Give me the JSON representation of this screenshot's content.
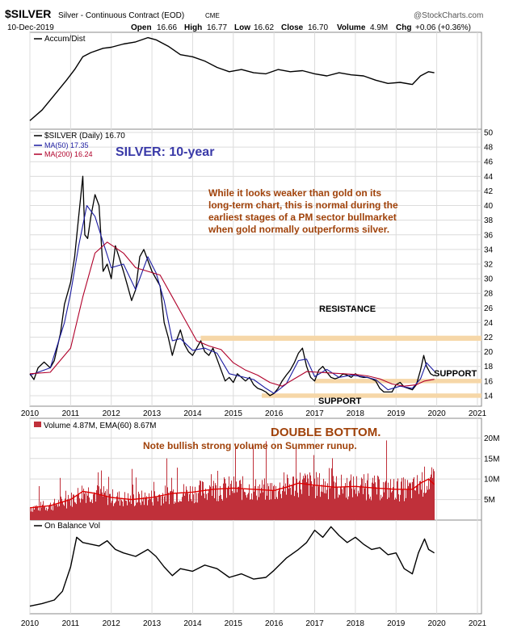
{
  "header": {
    "symbol": "$SILVER",
    "name": "Silver - Continuous Contract (EOD)",
    "exchange": "CME",
    "date": "10-Dec-2019",
    "watermark": "@StockCharts.com",
    "quote": {
      "open_label": "Open",
      "open": "16.66",
      "high_label": "High",
      "high": "16.77",
      "low_label": "Low",
      "low": "16.62",
      "close_label": "Close",
      "close": "16.70",
      "volume_label": "Volume",
      "volume": "4.9M",
      "chg_label": "Chg",
      "chg": "+0.06 (+0.36%)"
    }
  },
  "panels": {
    "accum": {
      "label": "Accum/Dist"
    },
    "price": {
      "label": "$SILVER (Daily) 16.70",
      "ma50": "MA(50) 17.35",
      "ma200": "MA(200) 16.24",
      "title": "SILVER: 10-year",
      "comment": [
        "While it looks weaker than gold on its",
        "long-term chart, this is normal during the",
        "earliest stages of a PM sector bullmarket",
        "when gold normally outperforms silver."
      ],
      "resistance_label": "RESISTANCE",
      "support_right_label": "SUPPORT",
      "support_bottom_label": "SUPPORT"
    },
    "volume": {
      "label": "Volume 4.87M, EMA(60) 8.67M",
      "title": "DOUBLE BOTTOM.",
      "note": "Note bullish strong volume on Summer runup."
    },
    "obv": {
      "label": "On Balance Vol"
    }
  },
  "colors": {
    "price": "#000000",
    "ma50": "#1a1aa0",
    "ma200": "#b0002a",
    "volume": "#c0303a",
    "volume_ema": "#e00000",
    "band": "#f6d7a8",
    "title_blue": "#3a3aa8",
    "comment_brown": "#a0420a",
    "grid": "#dcdcdc"
  },
  "chart_data": [
    {
      "type": "line",
      "name": "Accum/Dist",
      "x": [
        2010.0,
        2010.3,
        2010.6,
        2010.9,
        2011.1,
        2011.3,
        2011.5,
        2011.8,
        2012.0,
        2012.3,
        2012.6,
        2012.9,
        2013.1,
        2013.4,
        2013.7,
        2014.0,
        2014.3,
        2014.6,
        2014.9,
        2015.2,
        2015.5,
        2015.8,
        2016.1,
        2016.4,
        2016.7,
        2017.0,
        2017.3,
        2017.6,
        2017.9,
        2018.2,
        2018.5,
        2018.8,
        2019.1,
        2019.4,
        2019.6,
        2019.8,
        2019.94
      ],
      "values": [
        2,
        12,
        26,
        40,
        50,
        62,
        66,
        70,
        71,
        74,
        76,
        80,
        78,
        72,
        64,
        62,
        58,
        52,
        48,
        50,
        47,
        46,
        50,
        48,
        49,
        46,
        44,
        47,
        45,
        44,
        40,
        37,
        38,
        36,
        44,
        48,
        47
      ]
    },
    {
      "type": "line",
      "title": "SILVER: 10-year",
      "ylim": [
        13,
        50
      ],
      "y_ticks": [
        14,
        16,
        18,
        20,
        22,
        24,
        26,
        28,
        30,
        32,
        34,
        36,
        38,
        40,
        42,
        44,
        46,
        48,
        50
      ],
      "x_ticks": [
        "2010",
        "2011",
        "2012",
        "2013",
        "2014",
        "2015",
        "2016",
        "2017",
        "2018",
        "2019",
        "2020",
        "2021"
      ],
      "resistance": [
        21.5,
        22.2
      ],
      "support_upper": [
        15.7,
        16.3
      ],
      "support_lower": [
        13.7,
        14.3
      ],
      "series": [
        {
          "name": "$SILVER",
          "x": [
            2010.0,
            2010.1,
            2010.2,
            2010.35,
            2010.5,
            2010.6,
            2010.75,
            2010.85,
            2011.0,
            2011.1,
            2011.2,
            2011.3,
            2011.35,
            2011.42,
            2011.5,
            2011.6,
            2011.7,
            2011.8,
            2011.9,
            2012.0,
            2012.1,
            2012.2,
            2012.3,
            2012.4,
            2012.5,
            2012.6,
            2012.7,
            2012.8,
            2012.9,
            2013.0,
            2013.1,
            2013.2,
            2013.3,
            2013.4,
            2013.5,
            2013.6,
            2013.7,
            2013.8,
            2013.9,
            2014.0,
            2014.1,
            2014.2,
            2014.3,
            2014.4,
            2014.5,
            2014.6,
            2014.7,
            2014.8,
            2014.9,
            2015.0,
            2015.1,
            2015.2,
            2015.3,
            2015.4,
            2015.5,
            2015.6,
            2015.7,
            2015.8,
            2015.9,
            2016.0,
            2016.1,
            2016.2,
            2016.3,
            2016.4,
            2016.5,
            2016.6,
            2016.7,
            2016.8,
            2016.9,
            2017.0,
            2017.1,
            2017.2,
            2017.3,
            2017.4,
            2017.5,
            2017.6,
            2017.7,
            2017.8,
            2017.9,
            2018.0,
            2018.1,
            2018.2,
            2018.3,
            2018.4,
            2018.5,
            2018.6,
            2018.7,
            2018.8,
            2018.9,
            2019.0,
            2019.1,
            2019.2,
            2019.3,
            2019.4,
            2019.5,
            2019.6,
            2019.68,
            2019.75,
            2019.85,
            2019.94
          ],
          "values": [
            17.0,
            16.2,
            17.8,
            18.6,
            17.8,
            18.8,
            22.5,
            26.5,
            29.5,
            33.0,
            38.5,
            44.0,
            36.0,
            35.5,
            38.5,
            41.5,
            40.0,
            31.0,
            32.0,
            30.0,
            34.5,
            32.8,
            31.0,
            29.0,
            27.0,
            28.5,
            33.0,
            34.0,
            32.5,
            31.0,
            30.0,
            29.0,
            24.0,
            22.0,
            19.5,
            21.5,
            23.0,
            21.0,
            20.0,
            19.5,
            20.5,
            21.5,
            20.0,
            19.5,
            20.5,
            19.0,
            17.5,
            16.0,
            16.5,
            15.8,
            17.0,
            16.5,
            16.0,
            16.5,
            15.5,
            15.0,
            14.8,
            14.5,
            14.0,
            14.3,
            15.0,
            16.0,
            16.8,
            17.5,
            18.5,
            19.8,
            20.5,
            18.0,
            16.5,
            16.0,
            17.5,
            18.0,
            17.2,
            16.5,
            16.3,
            16.5,
            17.0,
            16.8,
            16.5,
            17.0,
            16.6,
            16.5,
            16.5,
            16.3,
            16.0,
            15.0,
            14.5,
            14.5,
            14.5,
            15.5,
            15.8,
            15.2,
            15.0,
            14.8,
            15.5,
            17.5,
            19.5,
            18.0,
            17.0,
            16.7
          ]
        },
        {
          "name": "MA(50)",
          "x": [
            2010.0,
            2010.5,
            2010.85,
            2011.0,
            2011.2,
            2011.4,
            2011.6,
            2011.8,
            2012.0,
            2012.3,
            2012.6,
            2012.9,
            2013.1,
            2013.3,
            2013.5,
            2013.7,
            2014.0,
            2014.3,
            2014.6,
            2014.9,
            2015.2,
            2015.5,
            2015.8,
            2016.0,
            2016.3,
            2016.6,
            2016.8,
            2017.0,
            2017.3,
            2017.6,
            2017.9,
            2018.2,
            2018.5,
            2018.8,
            2019.1,
            2019.4,
            2019.6,
            2019.75,
            2019.94
          ],
          "values": [
            16.8,
            17.8,
            24.0,
            28.0,
            34.5,
            40.0,
            38.5,
            35.0,
            31.5,
            32.0,
            28.5,
            33.0,
            30.8,
            27.0,
            21.5,
            21.8,
            20.2,
            20.5,
            19.8,
            17.0,
            16.6,
            16.2,
            15.0,
            14.3,
            15.6,
            18.8,
            19.0,
            16.6,
            17.6,
            16.5,
            16.8,
            16.6,
            16.2,
            14.8,
            15.3,
            15.0,
            16.3,
            18.5,
            17.35
          ]
        },
        {
          "name": "MA(200)",
          "x": [
            2010.0,
            2010.5,
            2011.0,
            2011.3,
            2011.6,
            2011.9,
            2012.3,
            2012.6,
            2012.9,
            2013.2,
            2013.5,
            2013.8,
            2014.1,
            2014.4,
            2014.7,
            2015.0,
            2015.3,
            2015.6,
            2015.9,
            2016.2,
            2016.5,
            2016.8,
            2017.1,
            2017.4,
            2017.7,
            2018.0,
            2018.3,
            2018.6,
            2018.9,
            2019.2,
            2019.5,
            2019.7,
            2019.94
          ],
          "values": [
            17.0,
            17.2,
            20.5,
            27.5,
            33.5,
            35.0,
            33.5,
            31.5,
            31.0,
            30.5,
            27.5,
            24.5,
            21.5,
            20.8,
            20.3,
            18.5,
            17.5,
            16.8,
            15.8,
            15.3,
            16.3,
            17.3,
            17.2,
            17.1,
            17.0,
            16.9,
            16.7,
            16.3,
            15.6,
            15.3,
            15.5,
            16.0,
            16.24
          ]
        }
      ]
    },
    {
      "type": "bar",
      "name": "Volume",
      "ylim": [
        0,
        24
      ],
      "unit": "M",
      "y_ticks": [
        "5M",
        "10M",
        "15M",
        "20M"
      ],
      "ema_name": "EMA(60)",
      "ema_x": [
        2010.0,
        2010.5,
        2011.0,
        2011.3,
        2011.6,
        2012.0,
        2012.5,
        2013.0,
        2013.5,
        2014.0,
        2014.5,
        2015.0,
        2015.5,
        2016.0,
        2016.3,
        2016.6,
        2017.0,
        2017.5,
        2018.0,
        2018.5,
        2019.0,
        2019.4,
        2019.6,
        2019.8,
        2019.94
      ],
      "ema_values": [
        3.0,
        3.5,
        5.0,
        7.0,
        6.5,
        5.5,
        5.0,
        5.5,
        6.5,
        6.8,
        7.5,
        7.8,
        7.5,
        7.2,
        8.0,
        9.0,
        8.5,
        8.0,
        8.2,
        7.8,
        7.5,
        7.5,
        9.0,
        10.0,
        8.67
      ],
      "x_range": [
        2010.0,
        2019.94
      ]
    },
    {
      "type": "line",
      "name": "On Balance Vol",
      "x": [
        2010.0,
        2010.3,
        2010.6,
        2010.8,
        2011.0,
        2011.15,
        2011.3,
        2011.5,
        2011.7,
        2011.9,
        2012.1,
        2012.3,
        2012.6,
        2012.9,
        2013.1,
        2013.3,
        2013.5,
        2013.7,
        2014.0,
        2014.3,
        2014.6,
        2014.9,
        2015.2,
        2015.5,
        2015.8,
        2016.0,
        2016.3,
        2016.6,
        2016.8,
        2017.0,
        2017.2,
        2017.4,
        2017.6,
        2017.8,
        2018.0,
        2018.2,
        2018.4,
        2018.6,
        2018.8,
        2019.0,
        2019.2,
        2019.4,
        2019.55,
        2019.7,
        2019.8,
        2019.94
      ],
      "values": [
        5,
        8,
        12,
        22,
        50,
        84,
        78,
        76,
        74,
        80,
        70,
        66,
        62,
        70,
        62,
        50,
        40,
        48,
        45,
        52,
        48,
        38,
        42,
        36,
        38,
        46,
        60,
        70,
        78,
        92,
        84,
        96,
        86,
        78,
        84,
        76,
        70,
        72,
        64,
        66,
        48,
        42,
        66,
        82,
        70,
        66
      ]
    }
  ]
}
